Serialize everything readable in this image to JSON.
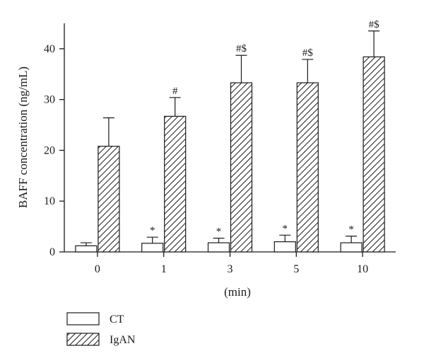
{
  "chart_data": {
    "type": "bar",
    "title": "",
    "xlabel": "(min)",
    "ylabel": "BAFF concentration (ng/mL)",
    "categories": [
      "0",
      "1",
      "3",
      "5",
      "10"
    ],
    "ylim": [
      0,
      45
    ],
    "yticks": [
      "0",
      "10",
      "20",
      "30",
      "40"
    ],
    "series": [
      {
        "name": "CT",
        "values": [
          1.2,
          1.7,
          1.8,
          2.0,
          1.8
        ],
        "error": [
          0.6,
          1.2,
          0.9,
          1.3,
          1.3
        ],
        "annotations": [
          "",
          "*",
          "*",
          "*",
          "*"
        ],
        "fill": "white"
      },
      {
        "name": "IgAN",
        "values": [
          20.8,
          26.7,
          33.3,
          33.3,
          38.4
        ],
        "error": [
          5.6,
          3.7,
          5.4,
          4.6,
          5.1
        ],
        "annotations": [
          "",
          "#",
          "#$",
          "#$",
          "#$"
        ],
        "fill": "hatched"
      }
    ],
    "legend_position": "bottom-left",
    "grid": false
  },
  "colors": {
    "axis": "#1a1a1a",
    "bar_fill": "#ffffff",
    "hatch": "#1a1a1a"
  }
}
